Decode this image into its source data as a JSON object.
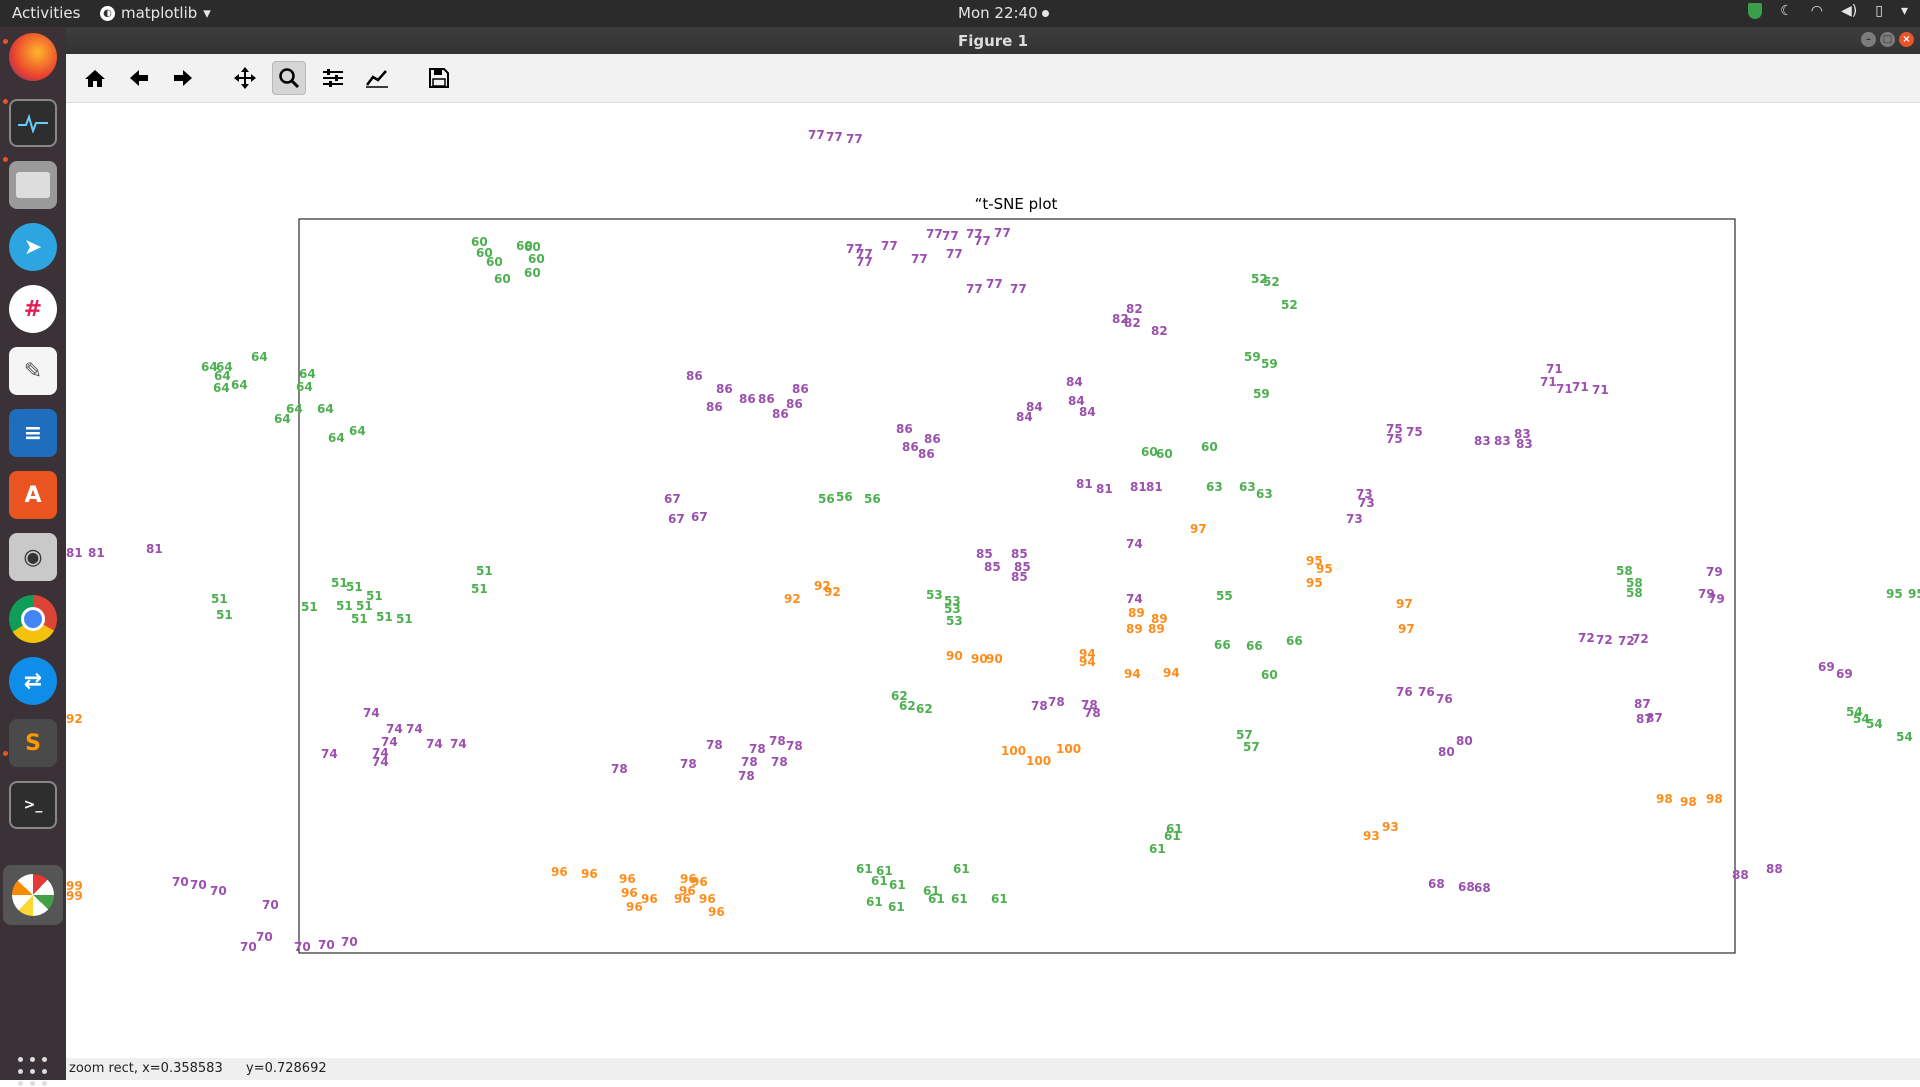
{
  "topbar": {
    "activities": "Activities",
    "app_name": "matplotlib",
    "clock": "Mon 22:40"
  },
  "window": {
    "title": "Figure 1"
  },
  "toolbar": {
    "buttons": [
      "home-icon",
      "back-arrow-icon",
      "forward-arrow-icon",
      "pan-icon",
      "zoom-icon",
      "subplots-icon",
      "edit-axes-icon",
      "save-icon"
    ]
  },
  "dock": {
    "apps": [
      "firefox-icon",
      "system-monitor-icon",
      "files-icon",
      "telegram-icon",
      "slack-icon",
      "text-editor-icon",
      "writer-icon",
      "software-center-icon",
      "screenshot-icon",
      "chrome-icon",
      "teamviewer-icon",
      "sublime-icon",
      "terminal-icon",
      "pinwheel-icon"
    ]
  },
  "status": {
    "mode": "zoom rect, x=0.358583",
    "y": "y=0.728692"
  },
  "colors": {
    "purple": "#9b4fae",
    "green": "#4caf50",
    "orange": "#ff8c1a"
  },
  "chart_data": {
    "type": "scatter",
    "title": "“t-SNE plot",
    "note_xlim": "zoomed view, axes hidden",
    "series": [
      {
        "color": "purple",
        "labels": [
          "77",
          "77",
          "77",
          "77",
          "77",
          "77",
          "77",
          "77",
          "77",
          "77",
          "77",
          "77",
          "77",
          "77",
          "77"
        ]
      },
      {
        "color": "green",
        "labels": [
          "60",
          "60",
          "60",
          "60",
          "60",
          "60",
          "60",
          "60",
          "60"
        ]
      }
    ]
  }
}
